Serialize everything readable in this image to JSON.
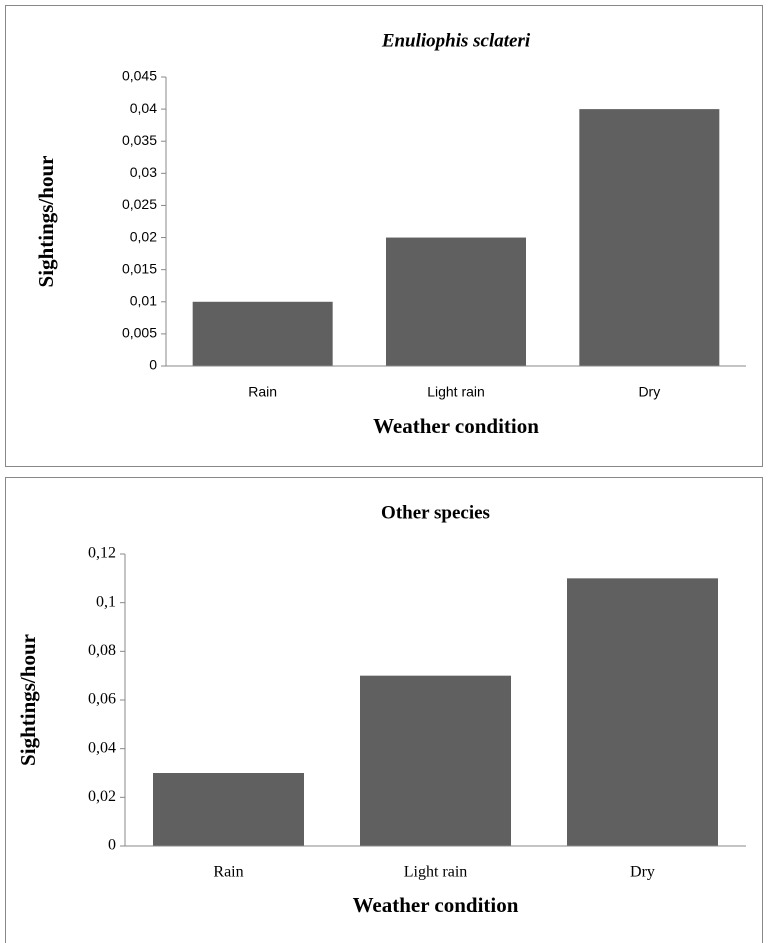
{
  "chart_data": [
    {
      "type": "bar",
      "title": "Enuliophis sclateri",
      "x_label": "Weather condition",
      "y_label": "Sightings/hour",
      "categories": [
        "Rain",
        "Light rain",
        "Dry"
      ],
      "values": [
        0.01,
        0.02,
        0.04
      ],
      "color": "#606060",
      "ylim": [
        0,
        0.045
      ],
      "yticks": [
        0,
        {
          "value": 0.005,
          "label": "0,005"
        },
        {
          "value": 0.01,
          "label": "0,01"
        },
        {
          "value": 0.015,
          "label": "0,015"
        },
        {
          "value": 0.02,
          "label": "0,02"
        },
        {
          "value": 0.025,
          "label": "0,025"
        },
        {
          "value": 0.03,
          "label": "0,03"
        },
        {
          "value": 0.035,
          "label": "0,035"
        },
        {
          "value": 0.04,
          "label": "0,04"
        },
        {
          "value": 0.045,
          "label": "0,045"
        }
      ]
    },
    {
      "type": "bar",
      "title": "Other species",
      "x_label": "Weather condition",
      "y_label": "Sightings/hour",
      "categories": [
        "Rain",
        "Light rain",
        "Dry"
      ],
      "values": [
        0.03,
        0.07,
        0.11
      ],
      "color": "#606060",
      "ylim": [
        0,
        0.12
      ],
      "yticks": [
        0,
        {
          "value": 0.02,
          "label": "0,02"
        },
        {
          "value": 0.04,
          "label": "0,04"
        },
        {
          "value": 0.06,
          "label": "0,06"
        },
        {
          "value": 0.08,
          "label": "0,08"
        },
        {
          "value": 0.1,
          "label": "0,1"
        },
        {
          "value": 0.12,
          "label": "0,12"
        }
      ]
    }
  ]
}
